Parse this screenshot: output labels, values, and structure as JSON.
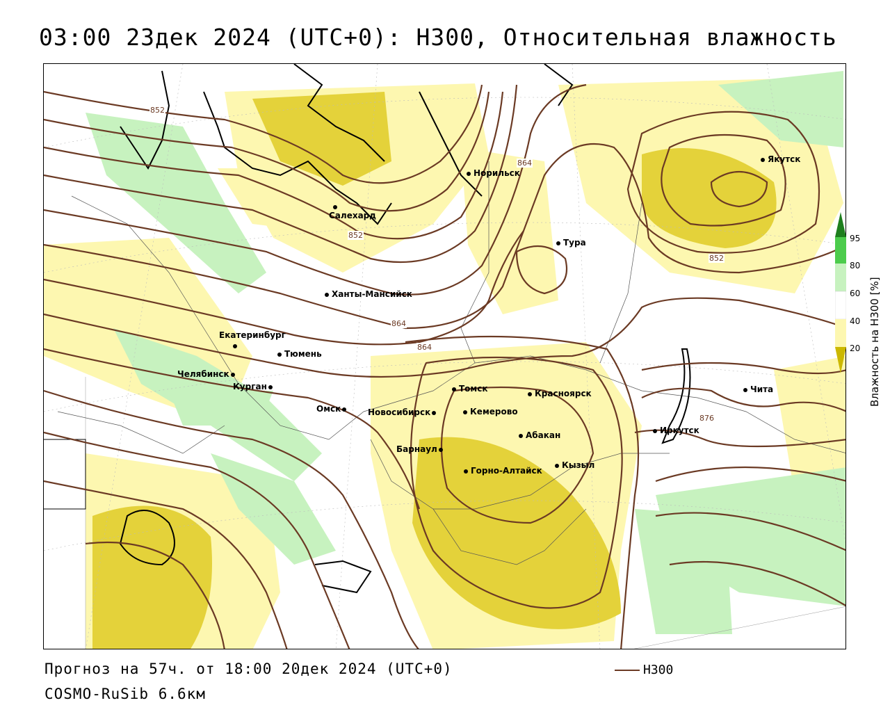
{
  "title": "03:00 23дек 2024 (UTC+0): H300, Относительная влажность",
  "footer": {
    "forecast": "Прогноз на 57ч. от 18:00 20дек 2024 (UTC+0)",
    "model": "COSMO-RuSib 6.6км"
  },
  "legend": {
    "line_label": "H300",
    "line_color": "#6b3a24"
  },
  "colorbar": {
    "title": "Влажность на H300 [%]",
    "ticks": [
      "95",
      "80",
      "60",
      "40",
      "20"
    ],
    "colors": {
      "lt20": "#ccb800",
      "20_40": "#fdf7b0",
      "40_60": "#ffffff",
      "60_80": "#c7f2bf",
      "80_95": "#4ccc4c",
      "gt95": "#1e7f1e"
    }
  },
  "contour_labels": [
    "852",
    "852",
    "864",
    "864",
    "864",
    "852",
    "876"
  ],
  "cities": [
    "Якутск",
    "Норильск",
    "Салехард",
    "Тура",
    "Ханты-Мансийск",
    "Екатеринбург",
    "Тюмень",
    "Челябинск",
    "Курган",
    "Омск",
    "Новосибирск",
    "Томск",
    "Кемерово",
    "Красноярск",
    "Барнаул",
    "Абакан",
    "Горно-Алтайск",
    "Кызыл",
    "Иркутск",
    "Чита"
  ]
}
